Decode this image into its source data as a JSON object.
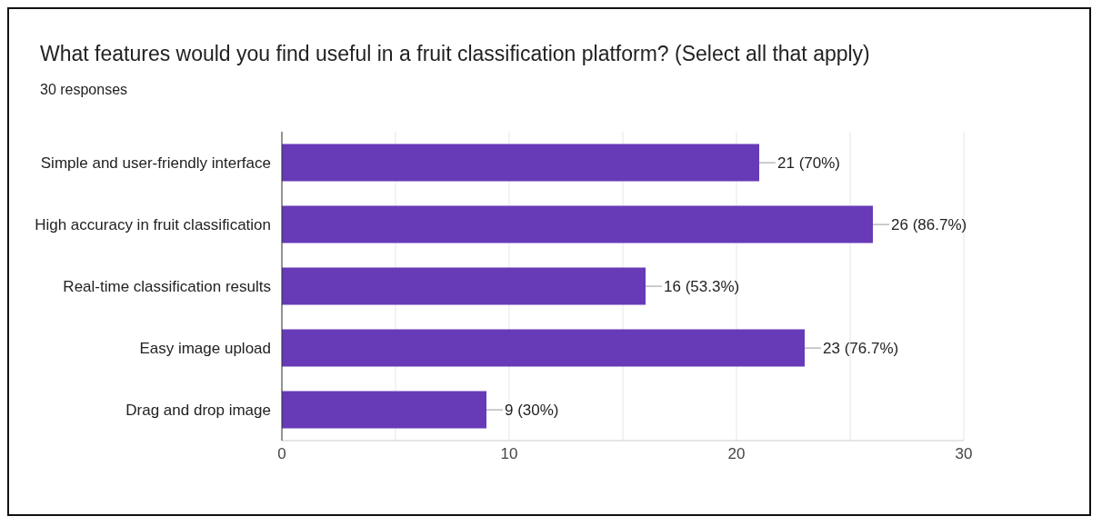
{
  "chart_data": {
    "type": "bar",
    "orientation": "horizontal",
    "title": "What features would you find useful in a fruit classification platform? (Select all that apply)",
    "subtitle": "30 responses",
    "categories": [
      "Simple and user-friendly interface",
      "High accuracy in fruit classification",
      "Real-time classification results",
      "Easy image upload",
      "Drag and drop image"
    ],
    "values": [
      21,
      26,
      16,
      23,
      9
    ],
    "value_labels": [
      "21 (70%)",
      "26 (86.7%)",
      "16 (53.3%)",
      "23 (76.7%)",
      "9 (30%)"
    ],
    "color": "#673ab7",
    "xlim": [
      0,
      30
    ],
    "xticks": [
      0,
      {
        "value": 5,
        "label": null
      },
      10,
      {
        "value": 15,
        "label": null
      },
      20,
      {
        "value": 25,
        "label": null
      },
      30
    ],
    "grid": "x"
  }
}
